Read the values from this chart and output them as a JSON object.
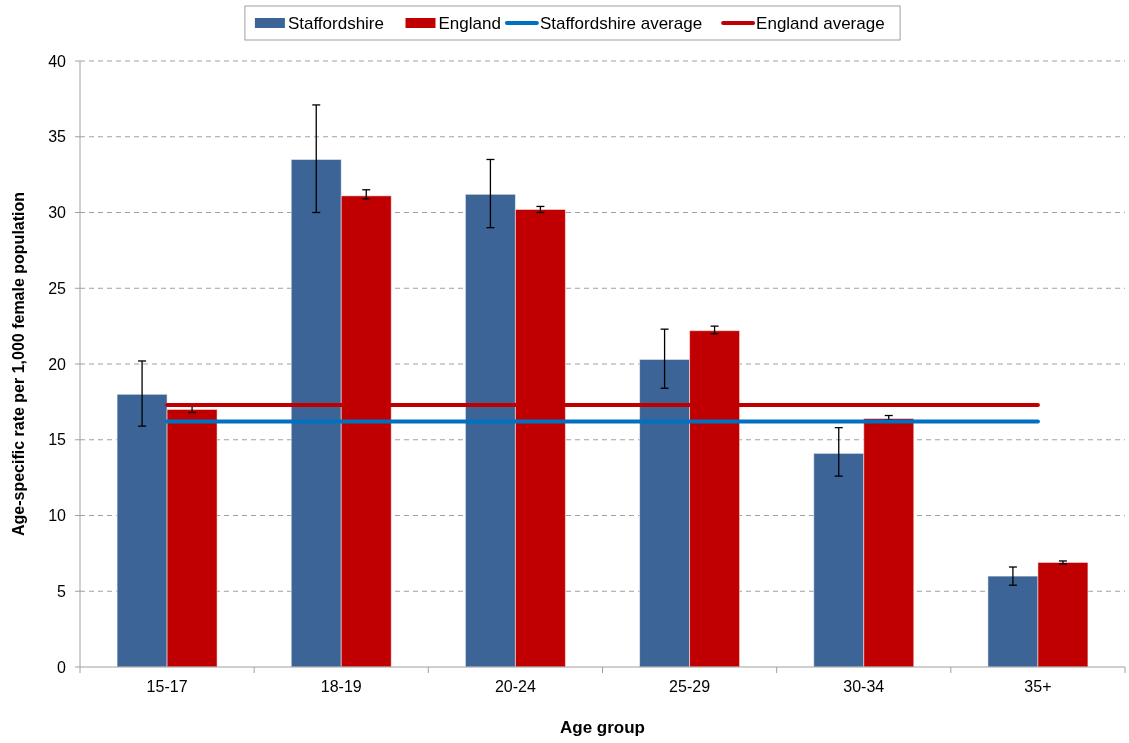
{
  "chart_data": {
    "type": "bar",
    "xlabel": "Age group",
    "ylabel": "Age-specific rate per 1,000 female population",
    "categories": [
      "15-17",
      "18-19",
      "20-24",
      "25-29",
      "30-34",
      "35+"
    ],
    "series": [
      {
        "name": "Staffordshire",
        "color": "#3c6496",
        "values": [
          18.0,
          33.5,
          31.2,
          20.3,
          14.1,
          6.0
        ],
        "errors": [
          [
            15.9,
            20.2
          ],
          [
            30.0,
            37.1
          ],
          [
            29.0,
            33.5
          ],
          [
            18.4,
            22.3
          ],
          [
            12.6,
            15.8
          ],
          [
            5.4,
            6.6
          ]
        ]
      },
      {
        "name": "England",
        "color": "#c00000",
        "values": [
          17.0,
          31.1,
          30.2,
          22.2,
          16.4,
          6.9
        ],
        "errors": [
          [
            16.8,
            17.2
          ],
          [
            30.9,
            31.5
          ],
          [
            30.0,
            30.4
          ],
          [
            22.0,
            22.5
          ],
          [
            16.3,
            16.6
          ],
          [
            6.8,
            7.0
          ]
        ]
      },
      {
        "name": "Staffordshire average",
        "type": "line",
        "color": "#0070c0",
        "values": [
          16.2,
          16.2,
          16.2,
          16.2,
          16.2,
          16.2
        ]
      },
      {
        "name": "England average",
        "type": "line",
        "color": "#c00000",
        "values": [
          17.3,
          17.3,
          17.3,
          17.3,
          17.3,
          17.3
        ]
      }
    ],
    "ylim": [
      0,
      40
    ],
    "yticks": [
      0,
      5,
      10,
      15,
      20,
      25,
      30,
      35,
      40
    ],
    "grid": "y",
    "legend": "top",
    "marker": "none"
  }
}
